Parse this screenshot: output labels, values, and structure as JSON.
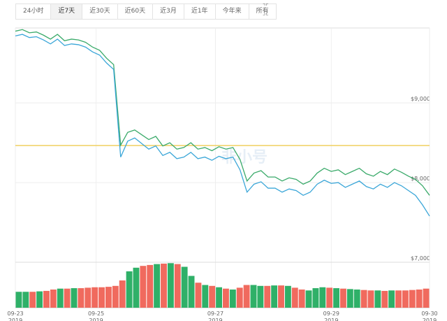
{
  "toolbar": {
    "buttons": [
      "24小时",
      "近7天",
      "近30天",
      "近60天",
      "近3月",
      "近1年",
      "今年来",
      "所有"
    ],
    "active": 1
  },
  "chart_data": {
    "type": "line",
    "watermark": "非小号",
    "series": [
      {
        "color": "#3aaa6a",
        "values": [
          9900,
          9920,
          9880,
          9890,
          9850,
          9800,
          9860,
          9780,
          9800,
          9790,
          9760,
          9700,
          9660,
          9560,
          9480,
          8470,
          8630,
          8660,
          8600,
          8540,
          8580,
          8460,
          8500,
          8420,
          8440,
          8500,
          8420,
          8440,
          8400,
          8450,
          8420,
          8440,
          8290,
          8020,
          8120,
          8150,
          8070,
          8070,
          8020,
          8060,
          8040,
          7980,
          8020,
          8120,
          8180,
          8140,
          8160,
          8100,
          8140,
          8180,
          8110,
          8080,
          8140,
          8100,
          8170,
          8130,
          8080,
          8040,
          7960,
          7840
        ]
      },
      {
        "color": "#3aa6d8",
        "values": [
          9840,
          9860,
          9820,
          9830,
          9790,
          9740,
          9800,
          9720,
          9740,
          9730,
          9700,
          9640,
          9600,
          9500,
          9420,
          8320,
          8520,
          8560,
          8490,
          8420,
          8460,
          8340,
          8380,
          8300,
          8320,
          8380,
          8300,
          8320,
          8280,
          8330,
          8300,
          8320,
          8160,
          7880,
          7980,
          8010,
          7930,
          7930,
          7880,
          7920,
          7900,
          7840,
          7880,
          7980,
          8030,
          7990,
          8000,
          7940,
          7980,
          8020,
          7950,
          7920,
          7980,
          7940,
          8000,
          7960,
          7900,
          7840,
          7720,
          7580
        ]
      }
    ],
    "reference_line": 8465,
    "reference_color": "#f0d060",
    "ylim": [
      6430,
      9940
    ],
    "yticks": [
      {
        "value": 9000,
        "label": "$9,000"
      },
      {
        "value": 8000,
        "label": "$8,000"
      },
      {
        "value": 7000,
        "label": "$7,000"
      }
    ],
    "xlim": [
      0,
      59
    ],
    "xticks": [
      {
        "value": 0,
        "label": "09-23"
      },
      {
        "value": 11.5,
        "label": "09-25"
      },
      {
        "value": 28.5,
        "label": "09-27"
      },
      {
        "value": 45,
        "label": "09-29"
      },
      {
        "value": 59,
        "label": "09-30"
      }
    ],
    "xtick_year": "2019",
    "volume": {
      "up_color": "#2fb068",
      "down_color": "#f06a5e",
      "lim": [
        0,
        100
      ],
      "values": [
        35,
        35,
        35,
        36,
        37,
        40,
        42,
        42,
        43,
        43,
        44,
        45,
        45,
        46,
        48,
        60,
        80,
        88,
        92,
        94,
        96,
        97,
        98,
        96,
        90,
        70,
        55,
        50,
        48,
        45,
        42,
        40,
        44,
        50,
        50,
        48,
        48,
        49,
        49,
        48,
        44,
        40,
        38,
        43,
        45,
        44,
        43,
        42,
        41,
        40,
        39,
        38,
        38,
        37,
        38,
        38,
        38,
        39,
        40,
        42
      ]
    },
    "grid": true
  }
}
